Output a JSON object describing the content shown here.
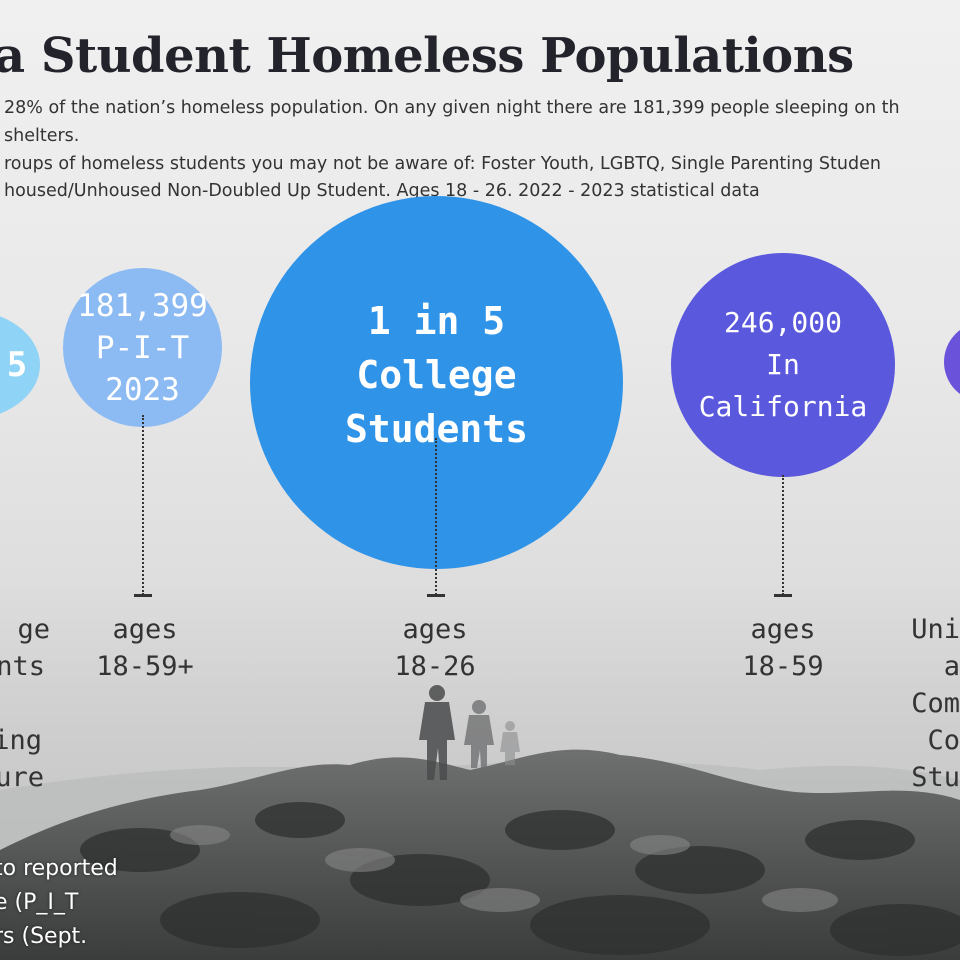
{
  "title": "a Student Homeless Populations",
  "intro_lines": [
    "28% of the nation’s homeless population. On any given night there are 181,399 people sleeping on th",
    "shelters.",
    "roups of homeless students you may not be aware of: Foster Youth, LGBTQ, Single Parenting Studen",
    "housed/Unhoused Non-Doubled Up Student. Ages 18 - 26. 2022 - 2023 statistical data"
  ],
  "circles": [
    {
      "lines": [
        "5"
      ],
      "color": "#8fd3f6"
    },
    {
      "lines": [
        "181,399",
        "P-I-T",
        "2023"
      ],
      "color": "#8cbaf2"
    },
    {
      "lines": [
        "1 in 5",
        "College",
        "Students"
      ],
      "color": "#2f93e8"
    },
    {
      "lines": [
        "246,000",
        "In",
        "California"
      ],
      "color": "#5a58dc"
    },
    {
      "lines": [],
      "color": "#6a52da"
    }
  ],
  "labels": [
    {
      "lines": [
        "ge",
        "nts",
        "",
        "ing",
        "ure"
      ]
    },
    {
      "lines": [
        "ages",
        "18-59+"
      ]
    },
    {
      "lines": [
        "ages",
        "18-26"
      ]
    },
    {
      "lines": [
        "ages",
        "18-59"
      ]
    },
    {
      "lines": [
        "Uni",
        "a",
        "Com",
        "Co",
        "Stu"
      ]
    }
  ],
  "footnote_lines": [
    "to reported",
    "e (P_I_T",
    "rs (Sept."
  ]
}
